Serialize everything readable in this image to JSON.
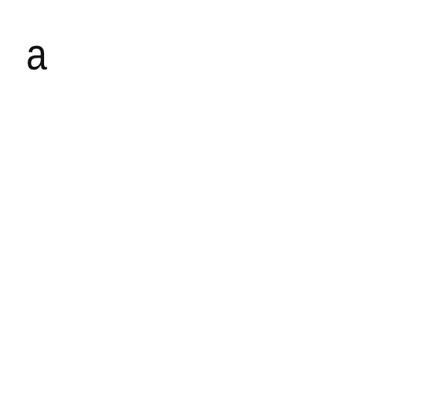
{
  "label": "a"
}
